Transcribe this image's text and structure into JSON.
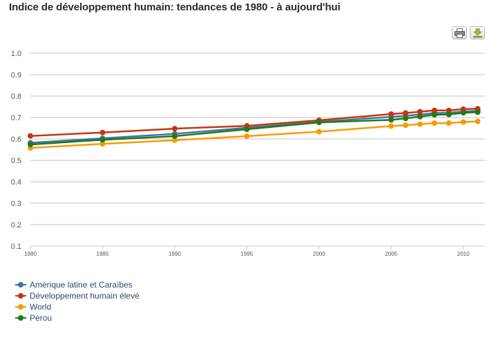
{
  "title": "Indice de développement humain: tendances de 1980 - à aujourd'hui",
  "toolbar": {
    "print_icon": "printer-icon",
    "export_icon": "download-icon"
  },
  "chart_data": {
    "type": "line",
    "x": [
      1980,
      1985,
      1990,
      1995,
      2000,
      2005,
      2006,
      2007,
      2008,
      2009,
      2010,
      2011
    ],
    "xticks": [
      "1980",
      "1985",
      "1990",
      "1995",
      "2000",
      "2005",
      "2010"
    ],
    "yticks": [
      "0.1",
      "0.2",
      "0.3",
      "0.4",
      "0.5",
      "0.6",
      "0.7",
      "0.8",
      "0.9",
      "1.0"
    ],
    "ylim": [
      0.1,
      1.0
    ],
    "xlim": [
      1980,
      2011.5
    ],
    "grid": true,
    "legend_position": "bottom-left",
    "series": [
      {
        "name": "Amérique latine et Caraïbes",
        "color": "#4572A7",
        "values": [
          0.582,
          0.603,
          0.624,
          0.652,
          0.68,
          0.703,
          0.708,
          0.714,
          0.721,
          0.722,
          0.728,
          0.731
        ]
      },
      {
        "name": "Développement humain élevé",
        "color": "#C7350E",
        "values": [
          0.614,
          0.63,
          0.648,
          0.661,
          0.687,
          0.716,
          0.721,
          0.727,
          0.733,
          0.733,
          0.739,
          0.741
        ]
      },
      {
        "name": "World",
        "color": "#F59D00",
        "values": [
          0.558,
          0.577,
          0.594,
          0.613,
          0.634,
          0.66,
          0.664,
          0.669,
          0.674,
          0.674,
          0.679,
          0.682
        ]
      },
      {
        "name": "Pérou",
        "color": "#1E7B15",
        "values": [
          0.574,
          0.596,
          0.613,
          0.645,
          0.677,
          0.689,
          0.696,
          0.704,
          0.713,
          0.714,
          0.722,
          0.725
        ]
      }
    ]
  }
}
